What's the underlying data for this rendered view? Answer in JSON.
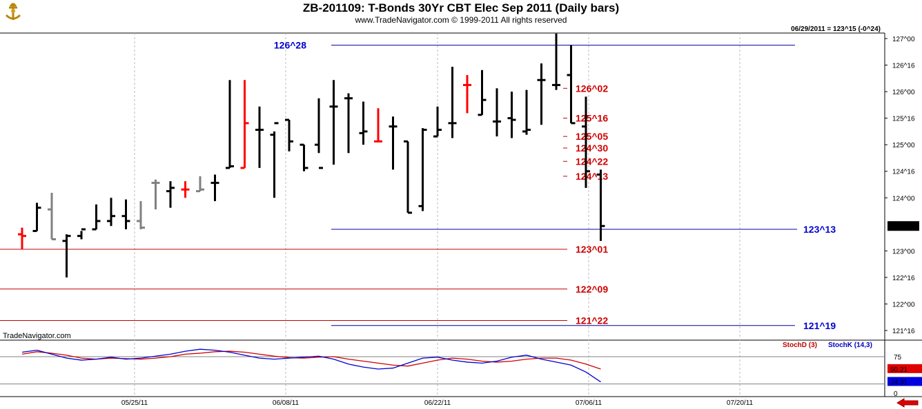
{
  "header": {
    "title": "ZB-201109:  T-Bonds 30Yr CBT Elec Sep 2011  (Daily bars)",
    "subtitle": "www.TradeNavigator.com © 1999-2011 All rights reserved",
    "quote": "06/29/2011 = 123^15 (-0^24)",
    "source": "TradeNavigator.com"
  },
  "icons": {
    "logo": "ship-wheel-icon",
    "back": "red-left-arrow-icon"
  },
  "colors": {
    "up": "#000000",
    "down": "#ff0000",
    "neutral": "#808080",
    "blue_level": "#0000a0",
    "red_level": "#c00000",
    "stoch_d": "#d00000",
    "stoch_k": "#0000d0"
  },
  "indicators": {
    "stoch_d_label": "StochD (3)",
    "stoch_k_label": "StochK (14,3)",
    "stoch_d_value": "50.21",
    "stoch_k_value": "24.31",
    "levels": [
      "75",
      "0"
    ]
  },
  "chart_data": {
    "type": "ohlc",
    "price_unit": "32nds",
    "y_ticks": [
      "121^16",
      "122^00",
      "122^16",
      "123^00",
      "124^00",
      "124^16",
      "125^00",
      "125^16",
      "126^00",
      "126^16",
      "127^00"
    ],
    "last_price_label": "123^15",
    "x_ticks": [
      "05/25/11",
      "06/08/11",
      "06/22/11",
      "07/06/11",
      "07/20/11"
    ],
    "bars": [
      {
        "h": "123^14",
        "l": "123^01",
        "o": "123^10",
        "c": "123^09",
        "col": "down"
      },
      {
        "h": "123^29",
        "l": "123^12",
        "o": "123^12",
        "c": "123^26",
        "col": "up"
      },
      {
        "h": "124^03",
        "l": "123^07",
        "o": "123^25",
        "c": "123^07",
        "col": "neutral"
      },
      {
        "h": "123^10",
        "l": "122^16",
        "o": "123^06",
        "c": "123^09",
        "col": "up"
      },
      {
        "h": "123^12",
        "l": "123^07",
        "o": "123^09",
        "c": "123^13",
        "col": "up"
      },
      {
        "h": "123^28",
        "l": "123^13",
        "o": "123^13",
        "c": "123^18",
        "col": "up"
      },
      {
        "h": "124^00",
        "l": "123^15",
        "o": "123^18",
        "c": "123^21",
        "col": "up"
      },
      {
        "h": "123^31",
        "l": "123^13",
        "o": "123^21",
        "c": "123^18",
        "col": "up"
      },
      {
        "h": "123^30",
        "l": "123^13",
        "o": "123^18",
        "c": "123^14",
        "col": "neutral"
      },
      {
        "h": "124^11",
        "l": "123^25",
        "o": "124^09",
        "c": "124^09",
        "col": "neutral"
      },
      {
        "h": "124^10",
        "l": "123^26",
        "o": "124^04",
        "c": "124^06",
        "col": "up"
      },
      {
        "h": "124^10",
        "l": "124^00",
        "o": "124^05",
        "c": "124^05",
        "col": "down"
      },
      {
        "h": "124^13",
        "l": "124^04",
        "o": "124^04",
        "c": "124^05",
        "col": "neutral"
      },
      {
        "h": "124^14",
        "l": "123^30",
        "o": "124^09",
        "c": "124^09",
        "col": "up"
      },
      {
        "h": "126^07",
        "l": "124^18",
        "o": "124^18",
        "c": "124^19",
        "col": "up"
      },
      {
        "h": "126^07",
        "l": "124^18",
        "o": "124^18",
        "c": "125^13",
        "col": "down"
      },
      {
        "h": "125^23",
        "l": "124^18",
        "o": "125^09",
        "c": "125^09",
        "col": "up"
      },
      {
        "h": "125^08",
        "l": "124^00",
        "o": "125^06",
        "c": "125^13",
        "col": "up"
      },
      {
        "h": "125^15",
        "l": "124^28",
        "o": "125^15",
        "c": "125^02",
        "col": "up"
      },
      {
        "h": "125^00",
        "l": "124^16",
        "o": "125^00",
        "c": "124^18",
        "col": "up"
      },
      {
        "h": "125^28",
        "l": "124^27",
        "o": "125^00",
        "c": "124^18",
        "col": "up"
      },
      {
        "h": "126^07",
        "l": "124^20",
        "o": "125^23",
        "c": "125^23",
        "col": "up"
      },
      {
        "h": "125^31",
        "l": "124^27",
        "o": "125^28",
        "c": "125^28",
        "col": "up"
      },
      {
        "h": "125^26",
        "l": "125^00",
        "o": "125^07",
        "c": "125^08",
        "col": "up"
      },
      {
        "h": "125^22",
        "l": "125^02",
        "o": "125^02",
        "c": "125^02",
        "col": "down"
      },
      {
        "h": "125^17",
        "l": "124^17",
        "o": "125^11",
        "c": "125^11",
        "col": "up"
      },
      {
        "h": "125^02",
        "l": "123^23",
        "o": "125^02",
        "c": "123^23",
        "col": "up"
      },
      {
        "h": "125^10",
        "l": "123^24",
        "o": "123^27",
        "c": "125^09",
        "col": "up"
      },
      {
        "h": "125^23",
        "l": "125^05",
        "o": "125^05",
        "c": "125^09",
        "col": "up"
      },
      {
        "h": "126^15",
        "l": "125^04",
        "o": "125^13",
        "c": "125^13",
        "col": "up"
      },
      {
        "h": "126^10",
        "l": "125^19",
        "o": "126^04",
        "c": "126^04",
        "col": "down"
      },
      {
        "h": "126^13",
        "l": "125^18",
        "o": "125^18",
        "c": "125^27",
        "col": "up"
      },
      {
        "h": "126^02",
        "l": "125^05",
        "o": "125^14",
        "c": "125^14",
        "col": "up"
      },
      {
        "h": "126^00",
        "l": "125^04",
        "o": "125^16",
        "c": "125^15",
        "col": "up"
      },
      {
        "h": "126^01",
        "l": "125^06",
        "o": "125^08",
        "c": "125^09",
        "col": "up"
      },
      {
        "h": "126^17",
        "l": "125^12",
        "o": "126^07",
        "c": "126^07",
        "col": "up"
      },
      {
        "h": "127^03",
        "l": "126^01",
        "o": "126^04",
        "c": "126^04",
        "col": "up"
      },
      {
        "h": "126^28",
        "l": "125^13",
        "o": "126^10",
        "c": "125^13",
        "col": "up"
      },
      {
        "h": "125^29",
        "l": "124^06",
        "o": "125^11",
        "c": "124^16",
        "col": "up"
      },
      {
        "h": "124^17",
        "l": "123^06",
        "o": "124^14",
        "c": "123^15",
        "col": "up"
      }
    ],
    "levels": [
      {
        "label": "126^28",
        "value": "126^28",
        "color": "blue",
        "from": 20,
        "to": "end"
      },
      {
        "label": "126^02",
        "value": "126^02",
        "color": "red",
        "from": 36,
        "to": "mid"
      },
      {
        "label": "125^16",
        "value": "125^16",
        "color": "red",
        "from": 36,
        "to": "mid"
      },
      {
        "label": "125^05",
        "value": "125^05",
        "color": "red",
        "from": 36,
        "to": "mid"
      },
      {
        "label": "124^30",
        "value": "124^30",
        "color": "red",
        "from": 36,
        "to": "mid"
      },
      {
        "label": "124^22",
        "value": "124^22",
        "color": "red",
        "from": 36,
        "to": "mid"
      },
      {
        "label": "124^13",
        "value": "124^13",
        "color": "red",
        "from": 36,
        "to": "mid"
      },
      {
        "label": "123^13",
        "value": "123^13",
        "color": "blue",
        "from": 20,
        "to": "full"
      },
      {
        "label": "123^01",
        "value": "123^01",
        "color": "red",
        "from": 0,
        "to": "mid"
      },
      {
        "label": "122^09",
        "value": "122^09",
        "color": "red",
        "from": 0,
        "to": "mid"
      },
      {
        "label": "121^22",
        "value": "121^22",
        "color": "red",
        "from": 0,
        "to": "mid"
      },
      {
        "label": "121^19",
        "value": "121^19",
        "color": "blue",
        "from": 20,
        "to": "end"
      }
    ],
    "stoch_d": [
      80,
      85,
      82,
      78,
      72,
      70,
      72,
      71,
      70,
      72,
      75,
      80,
      82,
      85,
      86,
      84,
      80,
      76,
      73,
      72,
      74,
      75,
      70,
      66,
      62,
      58,
      56,
      62,
      68,
      72,
      70,
      66,
      64,
      66,
      70,
      72,
      72,
      68,
      60,
      50
    ],
    "stoch_k": [
      84,
      88,
      80,
      72,
      68,
      70,
      74,
      70,
      72,
      76,
      80,
      86,
      90,
      88,
      84,
      78,
      72,
      70,
      72,
      74,
      76,
      70,
      60,
      54,
      50,
      52,
      62,
      72,
      74,
      68,
      64,
      62,
      66,
      74,
      78,
      70,
      64,
      58,
      44,
      24
    ]
  }
}
